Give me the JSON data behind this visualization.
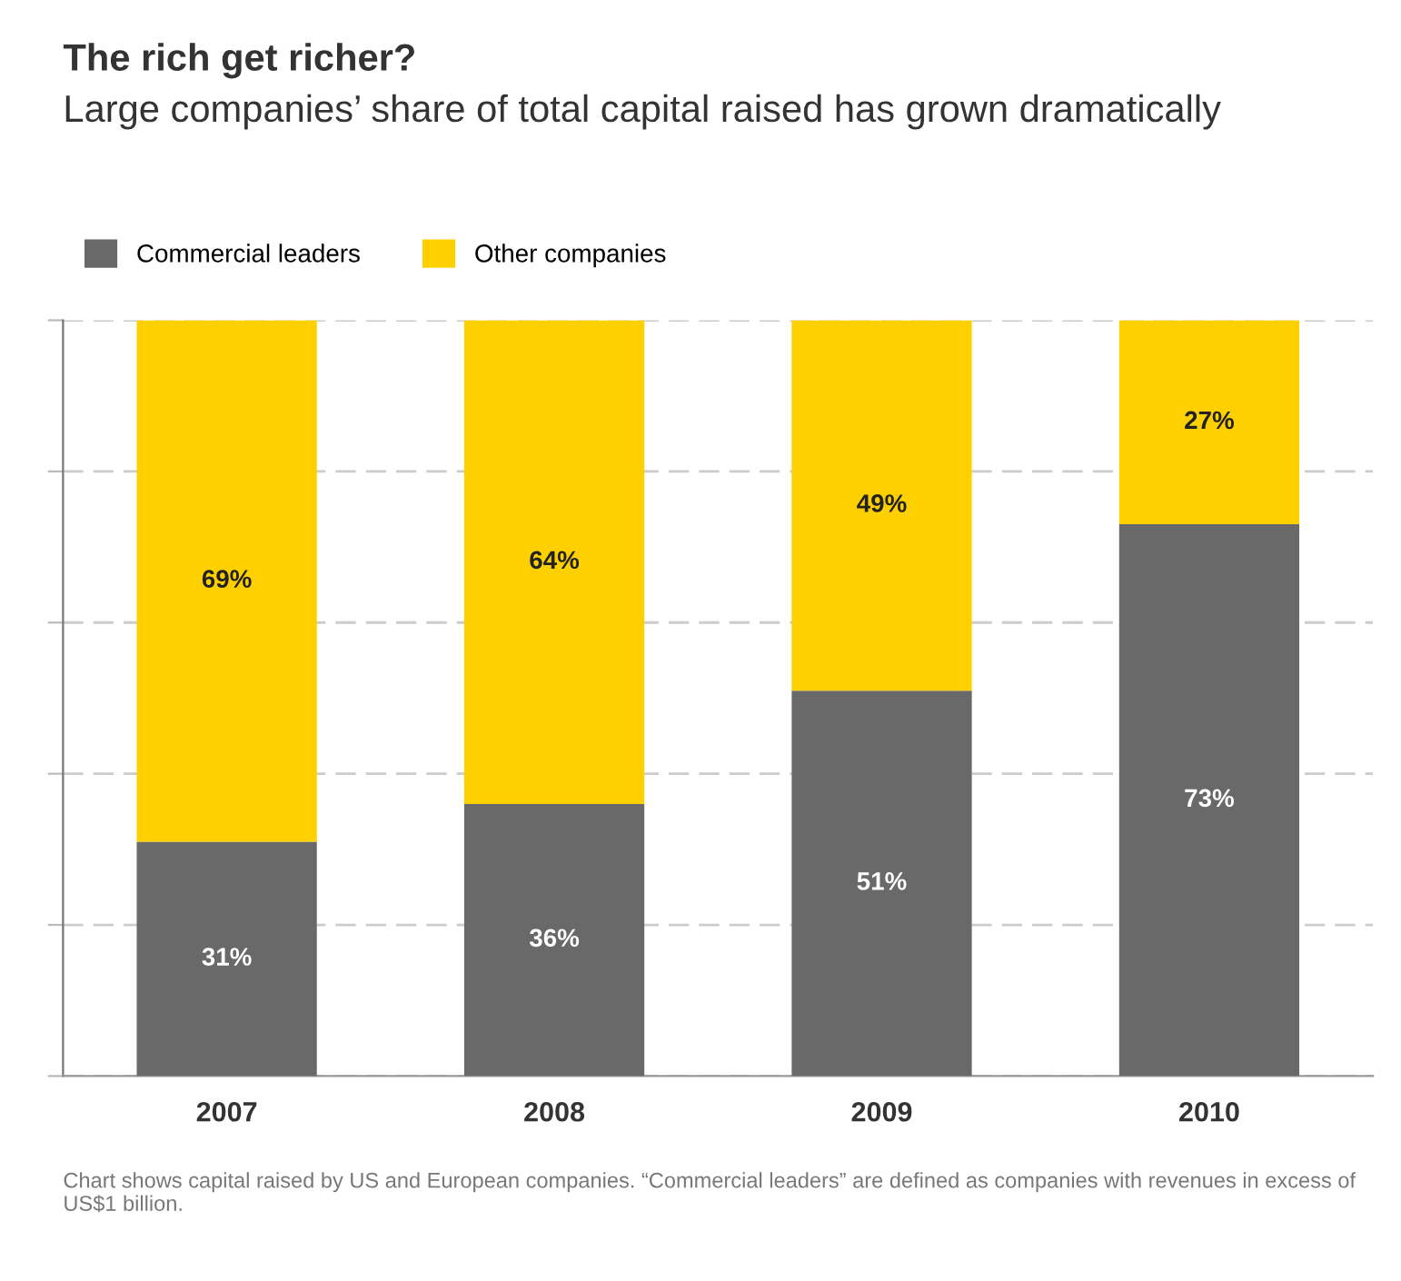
{
  "chart_data": {
    "type": "bar",
    "title": "The rich get richer?",
    "subtitle": "Large companies’ share of total capital raised has grown dramatically",
    "categories": [
      "2007",
      "2008",
      "2009",
      "2010"
    ],
    "stacked": true,
    "series": [
      {
        "name": "Commercial leaders",
        "color": "#696969",
        "values": [
          31,
          36,
          51,
          73
        ],
        "value_labels": [
          "31%",
          "36%",
          "51%",
          "73%"
        ]
      },
      {
        "name": "Other companies",
        "color": "#ffd000",
        "values": [
          69,
          64,
          49,
          27
        ],
        "value_labels": [
          "69%",
          "64%",
          "49%",
          "27%"
        ]
      }
    ],
    "ylim": [
      0,
      100
    ],
    "yticks": [
      {
        "value": 0,
        "label": null
      },
      {
        "value": 20,
        "label": null
      },
      {
        "value": 40,
        "label": null
      },
      {
        "value": 60,
        "label": null
      },
      {
        "value": 80,
        "label": null
      },
      {
        "value": 100,
        "label": null
      }
    ],
    "tick_labels": "x",
    "grid": "y",
    "legend": "top left",
    "annotations": [
      "Chart shows capital raised by US and European companies. “Commercial leaders” are defined as companies with revenues in excess of US$1 billion."
    ]
  }
}
